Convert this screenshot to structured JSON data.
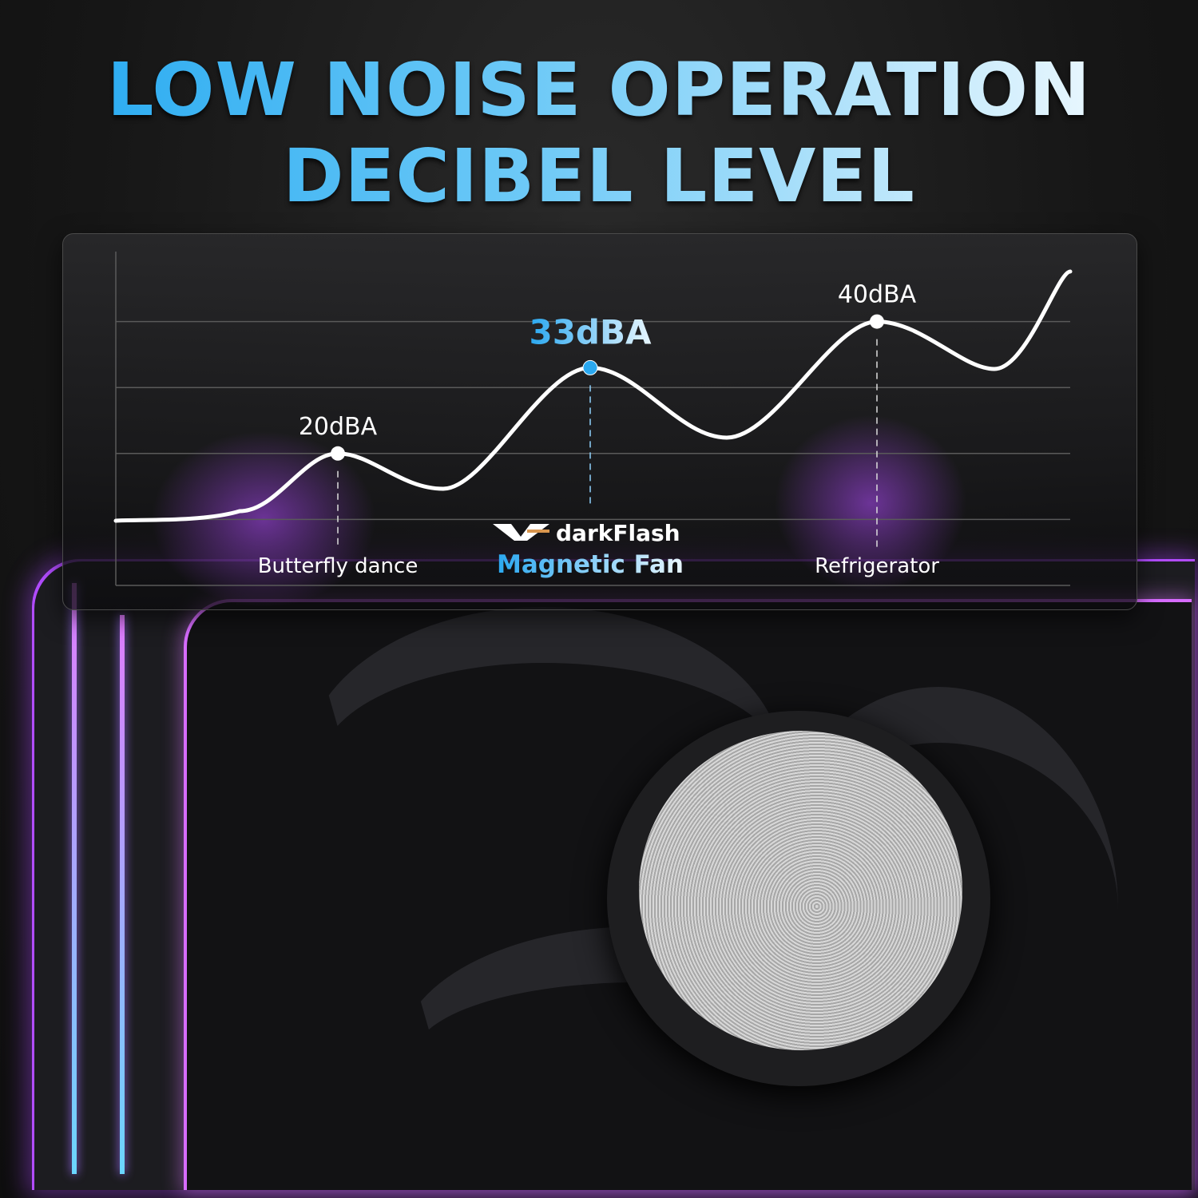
{
  "title": {
    "line1": "LOW NOISE OPERATION",
    "line2": "DECIBEL LEVEL"
  },
  "brand": {
    "logo_text": "darkFlash",
    "product": "Magnetic Fan"
  },
  "colors": {
    "accent": "#2aa8f0",
    "curve": "#ffffff",
    "glow": "#b24cff"
  },
  "chart_data": {
    "type": "line",
    "title": "",
    "xlabel": "",
    "ylabel": "",
    "ylim": [
      0,
      50
    ],
    "grid": true,
    "points": [
      {
        "category": "Butterfly dance",
        "value": 20,
        "label": "20dBA",
        "highlight": false
      },
      {
        "category": "Magnetic Fan",
        "value": 33,
        "label": "33dBA",
        "highlight": true
      },
      {
        "category": "Refrigerator",
        "value": 40,
        "label": "40dBA",
        "highlight": false
      }
    ]
  }
}
